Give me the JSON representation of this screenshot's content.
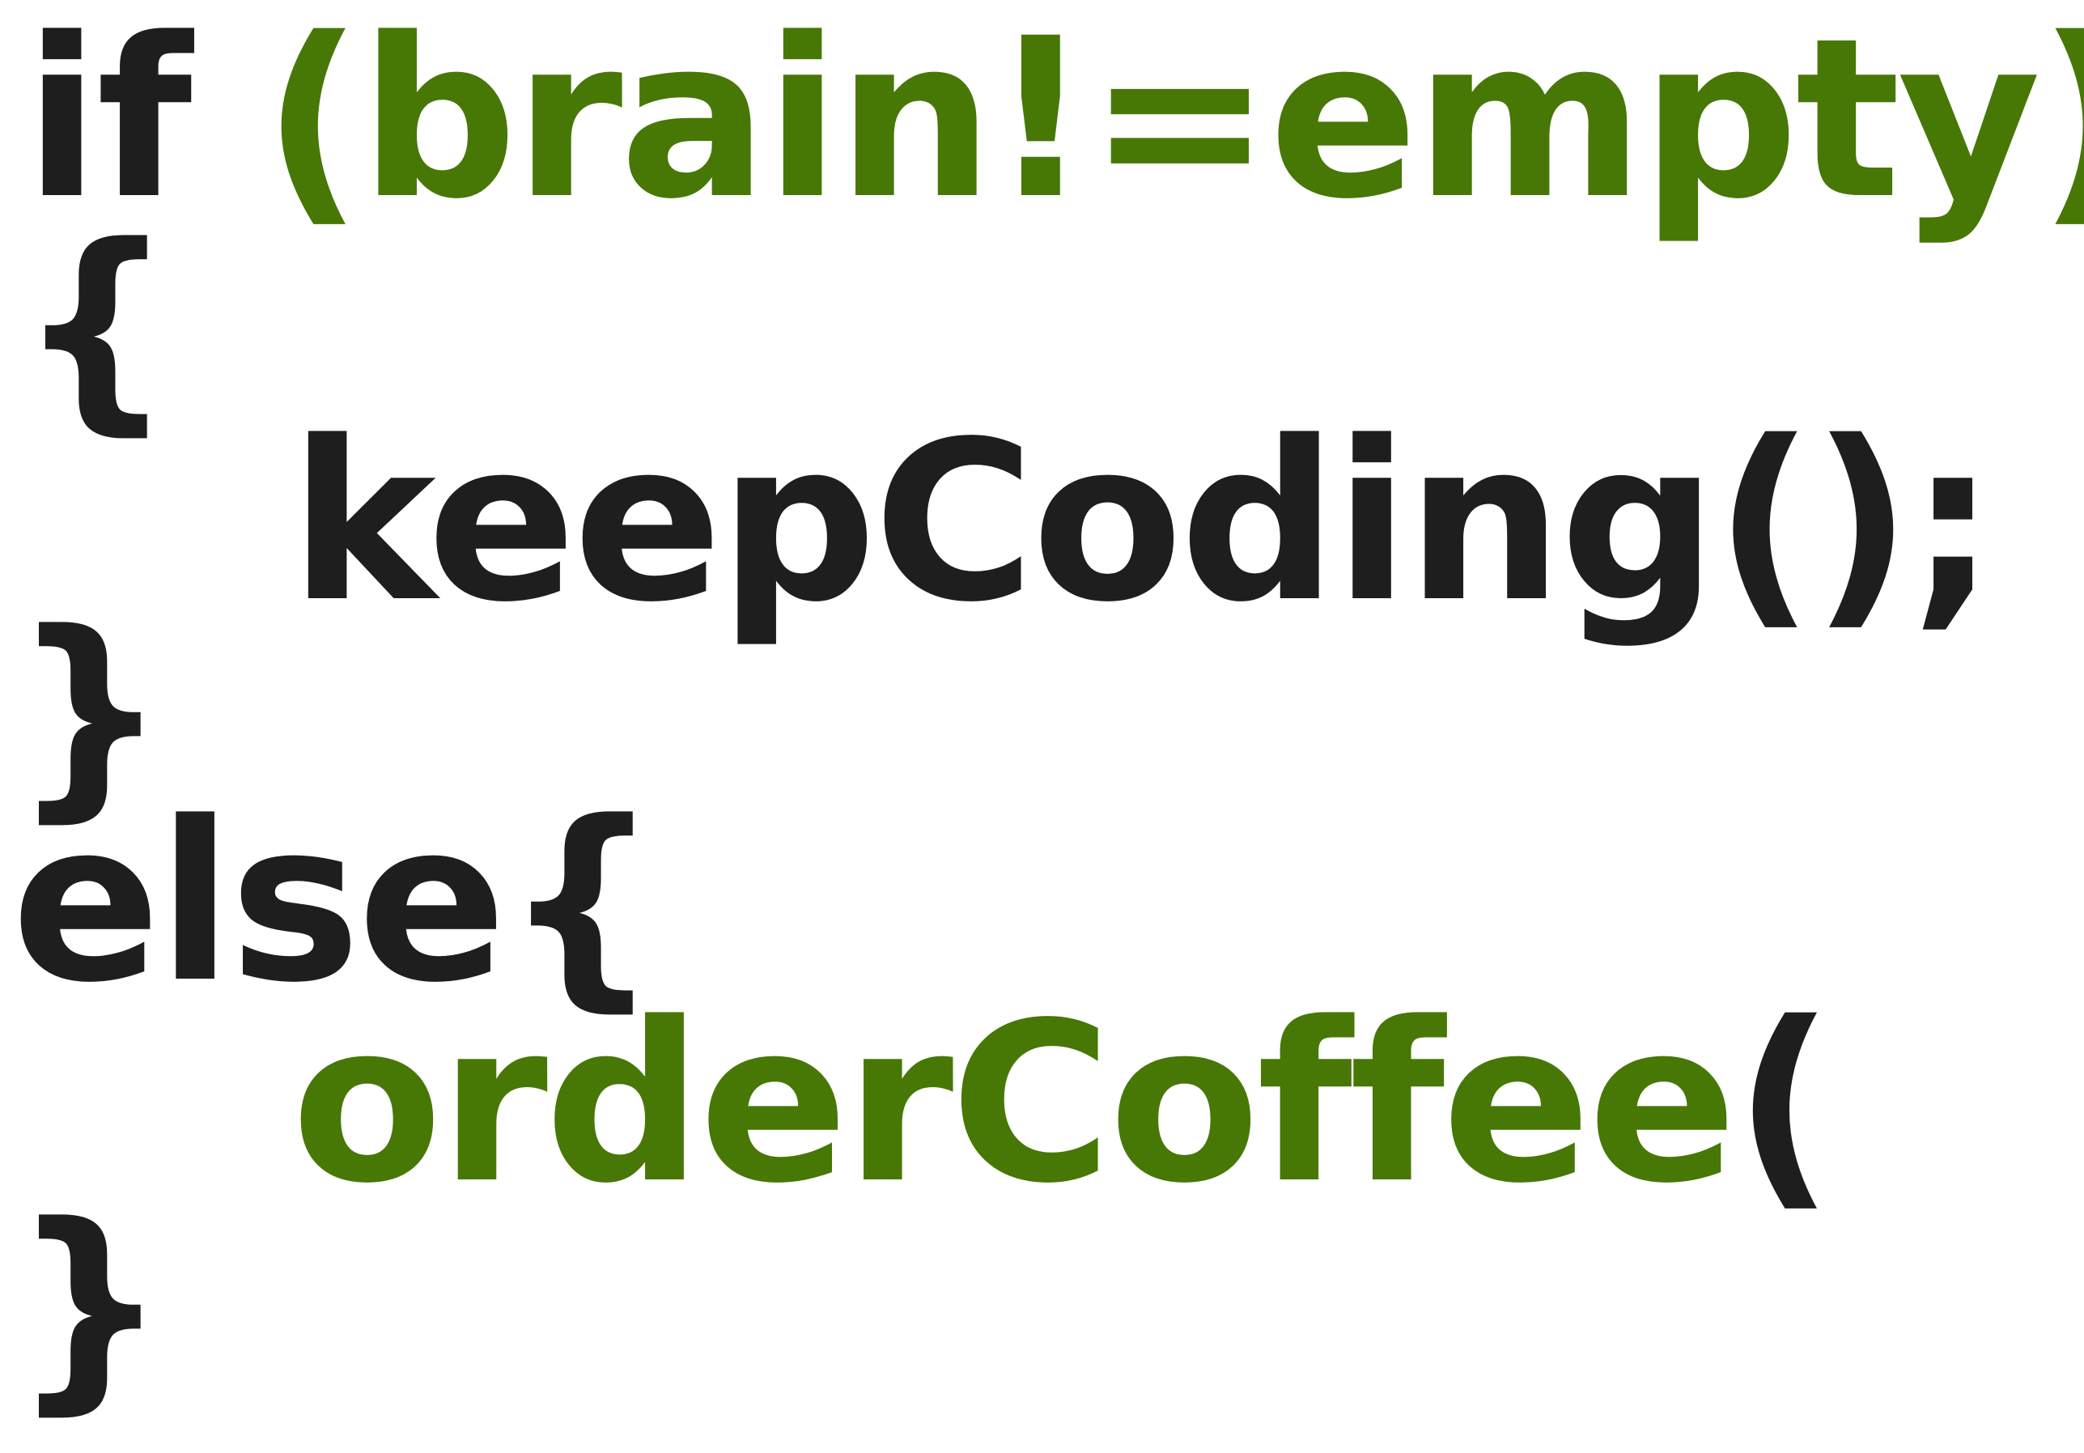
{
  "colors": {
    "keyword": "#1e1e1e",
    "accent": "#477806"
  },
  "code": {
    "line1_keyword": "if ",
    "line1_condition": "(brain!=empty)",
    "line2": "{",
    "line3": "keepCoding();",
    "line4": "}",
    "line5": "else{",
    "line6_call": "orderCoffee",
    "line6_paren": "(",
    "line7": "}"
  }
}
